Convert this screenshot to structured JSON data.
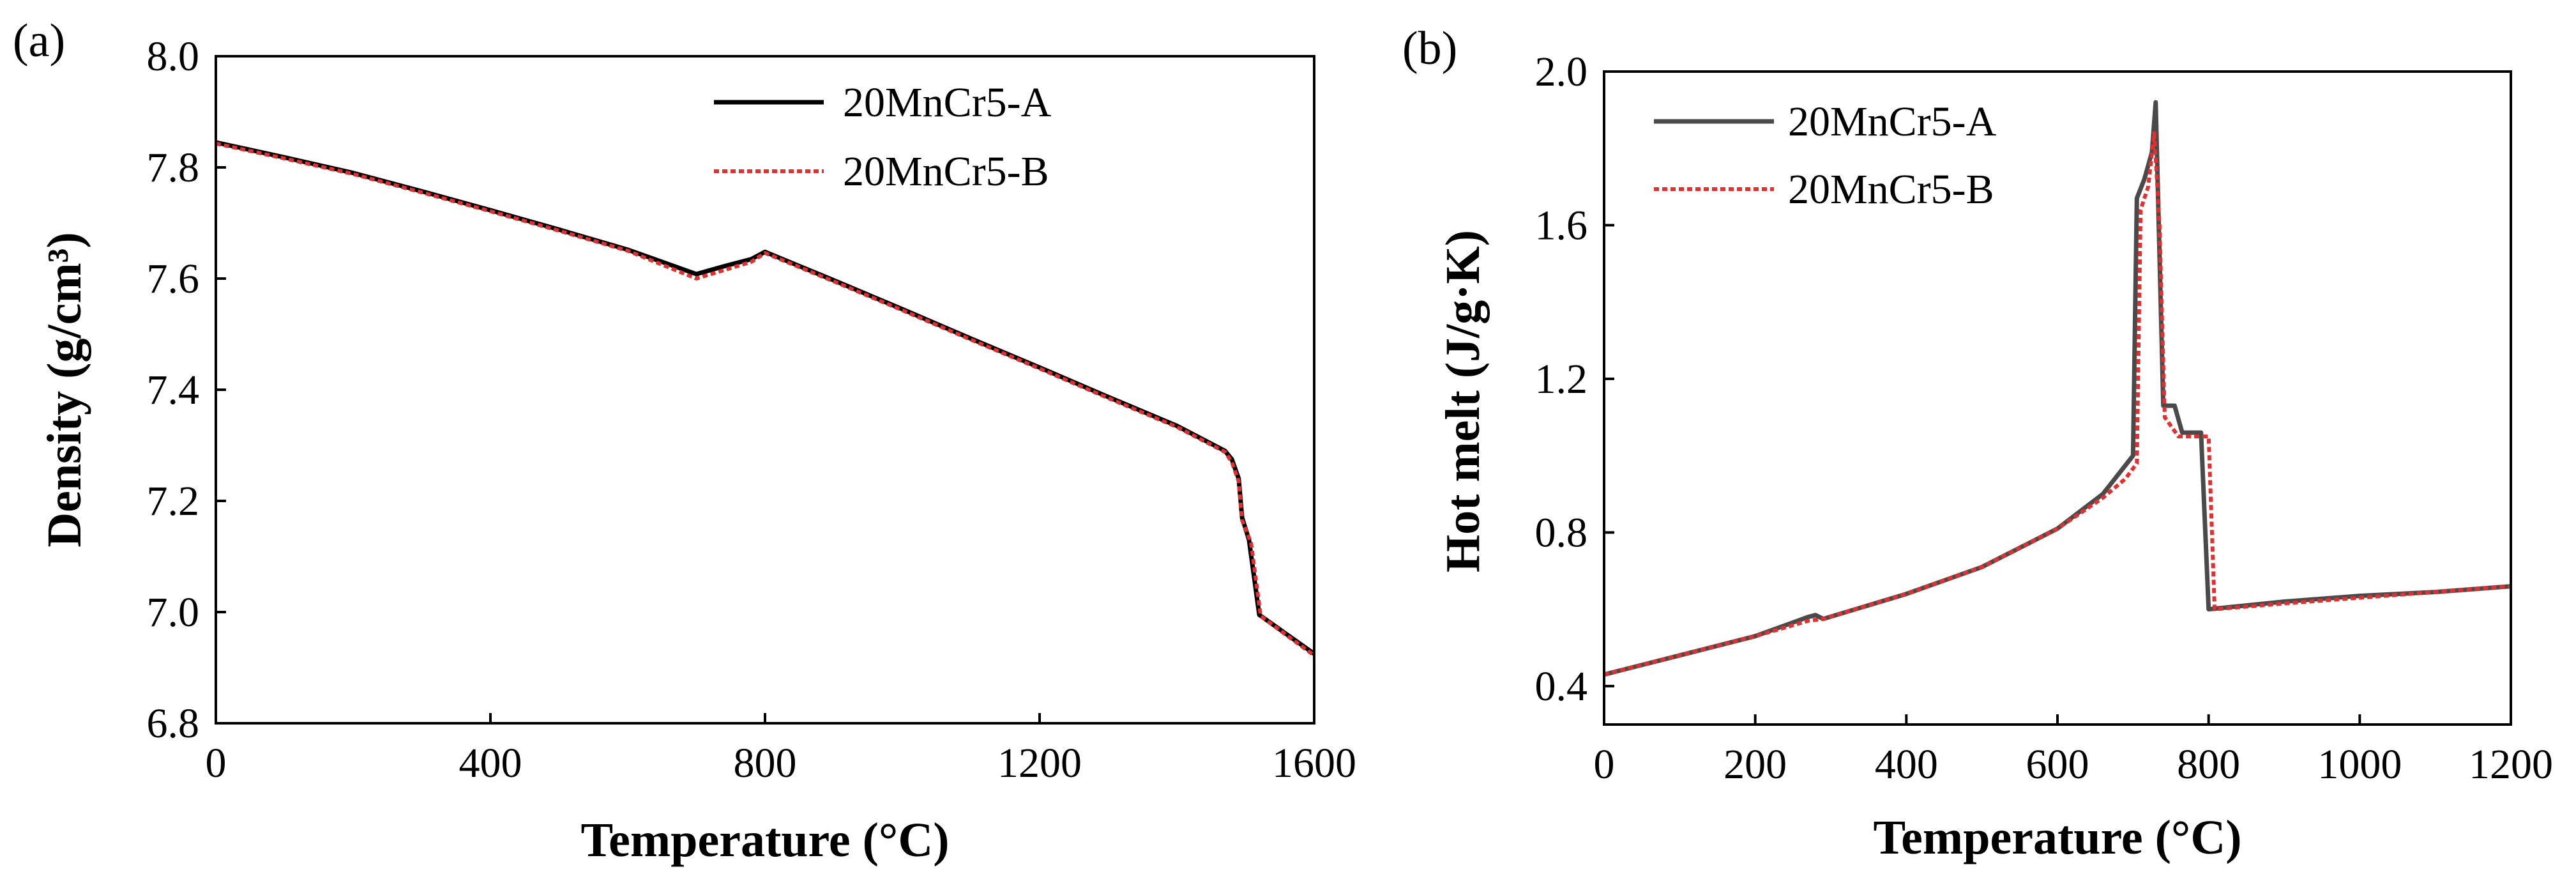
{
  "chart_data": [
    {
      "type": "line",
      "panel_label": "(a)",
      "title": "",
      "xlabel": "Temperature (°C)",
      "ylabel": "Density (g/cm³)",
      "xlim": [
        0,
        1600
      ],
      "ylim": [
        6.8,
        8.0
      ],
      "xticks": [
        0,
        400,
        800,
        1200,
        1600
      ],
      "yticks": [
        6.8,
        7.0,
        7.2,
        7.4,
        7.6,
        7.8,
        8.0
      ],
      "ytick_labels": [
        "6.8",
        "7.0",
        "7.2",
        "7.4",
        "7.6",
        "7.8",
        "8.0"
      ],
      "grid": false,
      "legend_position": "top-right",
      "series": [
        {
          "name": "20MnCr5-A",
          "color": "#000000",
          "style": "solid",
          "points": [
            [
              0,
              7.845
            ],
            [
              100,
              7.818
            ],
            [
              200,
              7.79
            ],
            [
              300,
              7.757
            ],
            [
              400,
              7.723
            ],
            [
              500,
              7.688
            ],
            [
              600,
              7.652
            ],
            [
              700,
              7.608
            ],
            [
              740,
              7.622
            ],
            [
              780,
              7.635
            ],
            [
              800,
              7.648
            ],
            [
              900,
              7.597
            ],
            [
              1000,
              7.545
            ],
            [
              1100,
              7.492
            ],
            [
              1200,
              7.44
            ],
            [
              1300,
              7.387
            ],
            [
              1400,
              7.335
            ],
            [
              1470,
              7.29
            ],
            [
              1480,
              7.275
            ],
            [
              1490,
              7.24
            ],
            [
              1495,
              7.17
            ],
            [
              1505,
              7.13
            ],
            [
              1520,
              6.995
            ],
            [
              1560,
              6.96
            ],
            [
              1600,
              6.925
            ]
          ]
        },
        {
          "name": "20MnCr5-B",
          "color": "#e03030",
          "style": "dotted",
          "points": [
            [
              0,
              7.843
            ],
            [
              100,
              7.816
            ],
            [
              200,
              7.788
            ],
            [
              300,
              7.755
            ],
            [
              400,
              7.721
            ],
            [
              500,
              7.686
            ],
            [
              600,
              7.65
            ],
            [
              700,
              7.6
            ],
            [
              740,
              7.615
            ],
            [
              780,
              7.63
            ],
            [
              800,
              7.646
            ],
            [
              900,
              7.595
            ],
            [
              1000,
              7.543
            ],
            [
              1100,
              7.49
            ],
            [
              1200,
              7.438
            ],
            [
              1300,
              7.385
            ],
            [
              1400,
              7.333
            ],
            [
              1470,
              7.288
            ],
            [
              1480,
              7.27
            ],
            [
              1490,
              7.235
            ],
            [
              1495,
              7.165
            ],
            [
              1508,
              7.125
            ],
            [
              1522,
              6.993
            ],
            [
              1560,
              6.958
            ],
            [
              1600,
              6.922
            ]
          ]
        }
      ]
    },
    {
      "type": "line",
      "panel_label": "(b)",
      "title": "",
      "xlabel": "Temperature (°C)",
      "ylabel": "Hot melt (J/g·K)",
      "xlim": [
        0,
        1200
      ],
      "ylim": [
        0.3,
        2.0
      ],
      "xticks": [
        0,
        200,
        400,
        600,
        800,
        1000,
        1200
      ],
      "yticks": [
        0.4,
        0.8,
        1.2,
        1.6,
        2.0
      ],
      "ytick_labels": [
        "0.4",
        "0.8",
        "1.2",
        "1.6",
        "2.0"
      ],
      "grid": false,
      "legend_position": "top-left",
      "series": [
        {
          "name": "20MnCr5-A",
          "color": "#4a4a4a",
          "style": "solid",
          "points": [
            [
              0,
              0.43
            ],
            [
              100,
              0.48
            ],
            [
              200,
              0.53
            ],
            [
              270,
              0.58
            ],
            [
              280,
              0.585
            ],
            [
              290,
              0.575
            ],
            [
              400,
              0.64
            ],
            [
              500,
              0.71
            ],
            [
              600,
              0.81
            ],
            [
              660,
              0.9
            ],
            [
              680,
              0.95
            ],
            [
              700,
              1.0
            ],
            [
              705,
              1.67
            ],
            [
              715,
              1.72
            ],
            [
              725,
              1.79
            ],
            [
              730,
              1.92
            ],
            [
              740,
              1.13
            ],
            [
              755,
              1.13
            ],
            [
              765,
              1.06
            ],
            [
              780,
              1.06
            ],
            [
              790,
              1.06
            ],
            [
              800,
              0.6
            ],
            [
              900,
              0.62
            ],
            [
              1000,
              0.635
            ],
            [
              1100,
              0.645
            ],
            [
              1200,
              0.66
            ]
          ]
        },
        {
          "name": "20MnCr5-B",
          "color": "#e03030",
          "style": "dotted",
          "points": [
            [
              0,
              0.43
            ],
            [
              100,
              0.48
            ],
            [
              200,
              0.53
            ],
            [
              270,
              0.57
            ],
            [
              290,
              0.575
            ],
            [
              400,
              0.64
            ],
            [
              500,
              0.71
            ],
            [
              600,
              0.81
            ],
            [
              660,
              0.89
            ],
            [
              690,
              0.94
            ],
            [
              705,
              0.98
            ],
            [
              710,
              1.64
            ],
            [
              720,
              1.7
            ],
            [
              728,
              1.84
            ],
            [
              735,
              1.6
            ],
            [
              742,
              1.1
            ],
            [
              760,
              1.05
            ],
            [
              780,
              1.05
            ],
            [
              800,
              1.05
            ],
            [
              808,
              0.6
            ],
            [
              900,
              0.615
            ],
            [
              1000,
              0.63
            ],
            [
              1100,
              0.645
            ],
            [
              1200,
              0.66
            ]
          ]
        }
      ]
    }
  ]
}
